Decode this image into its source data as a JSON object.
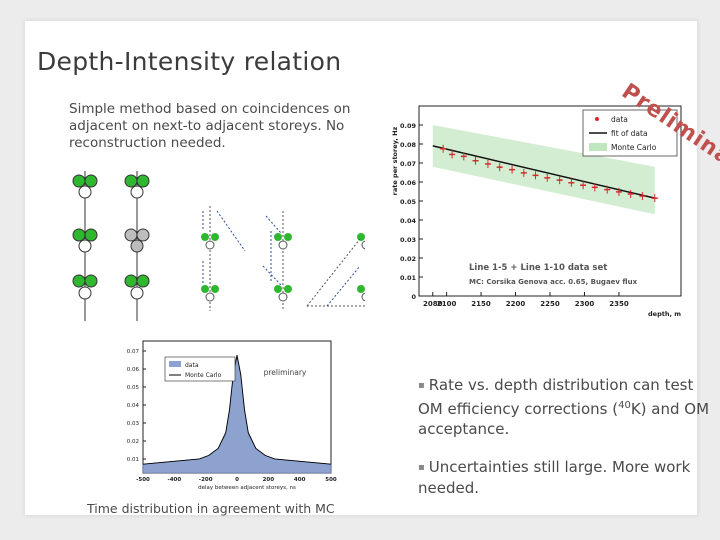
{
  "slide": {
    "title": "Depth-Intensity relation",
    "intro": "Simple method based on coincidences on adjacent on next-to adjacent storeys. No reconstruction needed.",
    "watermark": "Preliminary",
    "bullets": [
      {
        "pre": "Rate vs. depth distribution can test OM efficiency corrections (",
        "sup": "40",
        "post": "K) and  OM acceptance."
      },
      {
        "pre": "Uncertainties still large. More work needed.",
        "sup": "",
        "post": ""
      }
    ],
    "caption": "Time distribution in agreement with MC"
  },
  "chart_data": [
    {
      "type": "scatter",
      "title": "",
      "xlabel": "depth, m",
      "ylabel": "rate per storey, Hz",
      "xlim": [
        2060,
        2440
      ],
      "ylim": [
        0,
        0.1
      ],
      "xticks": [
        "2080",
        "2100",
        "2150",
        "2200",
        "2250",
        "2300",
        "2350"
      ],
      "yticks": [
        "0",
        "0.01",
        "0.02",
        "0.03",
        "0.04",
        "0.05",
        "0.06",
        "0.07",
        "0.08",
        "0.09"
      ],
      "legend": {
        "position": "top-right",
        "entries": [
          "data",
          "fit of data",
          "Monte Carlo"
        ]
      },
      "annotation_lines": [
        "Line 1-5 + Line 1-10 data set",
        "MC: Corsika Genova acc. 0.65, Bugaev flux"
      ],
      "series": [
        {
          "name": "data",
          "x": [
            2095,
            2108,
            2125,
            2142,
            2160,
            2177,
            2195,
            2212,
            2229,
            2246,
            2264,
            2281,
            2298,
            2315,
            2333,
            2350,
            2367,
            2384,
            2402
          ],
          "y": [
            0.0775,
            0.0745,
            0.0735,
            0.0712,
            0.0695,
            0.0678,
            0.0665,
            0.0648,
            0.0635,
            0.0622,
            0.061,
            0.0596,
            0.0583,
            0.0572,
            0.056,
            0.0548,
            0.0537,
            0.0526,
            0.0515
          ]
        },
        {
          "name": "fit of data",
          "x": [
            2080,
            2402
          ],
          "y": [
            0.079,
            0.0515
          ]
        },
        {
          "name": "Monte Carlo",
          "x": [
            2080,
            2402
          ],
          "y_low": [
            0.068,
            0.043
          ],
          "y_high": [
            0.09,
            0.068
          ]
        }
      ]
    },
    {
      "type": "bar",
      "title": "",
      "annotation": "preliminary",
      "xlabel": "delay between adjacent storeys, ns",
      "ylabel": "",
      "xticks": [
        "-500",
        "-400",
        "-200",
        "0",
        "200",
        "400",
        "500"
      ],
      "yticks": [
        "0.07",
        "0.06",
        "0.05",
        "0.04",
        "0.03",
        "0.02",
        "0.01"
      ],
      "legend": {
        "position": "top-right",
        "entries": [
          "data",
          "Monte Carlo"
        ]
      },
      "series": [
        {
          "name": "data",
          "x": [
            -500,
            -400,
            -300,
            -200,
            -150,
            -100,
            -60,
            -40,
            -20,
            0,
            20,
            40,
            60,
            100,
            150,
            200,
            300,
            400,
            500
          ],
          "y": [
            0.005,
            0.006,
            0.007,
            0.008,
            0.01,
            0.014,
            0.022,
            0.035,
            0.055,
            0.066,
            0.055,
            0.035,
            0.022,
            0.014,
            0.01,
            0.008,
            0.007,
            0.006,
            0.005
          ]
        },
        {
          "name": "Monte Carlo",
          "x": [
            -500,
            -400,
            -300,
            -200,
            -150,
            -100,
            -60,
            -40,
            -20,
            0,
            20,
            40,
            60,
            100,
            150,
            200,
            300,
            400,
            500
          ],
          "y": [
            0.005,
            0.006,
            0.007,
            0.008,
            0.01,
            0.014,
            0.023,
            0.036,
            0.056,
            0.067,
            0.056,
            0.036,
            0.023,
            0.014,
            0.01,
            0.008,
            0.007,
            0.006,
            0.005
          ]
        }
      ],
      "colors": {
        "data": "#8ea2cf",
        "monte_carlo": "#000000"
      }
    }
  ],
  "colors": {
    "title": "#3b3b3b",
    "watermark": "#c0504d",
    "green_om": "#2fb82f",
    "mc_band": "#bfe6bf",
    "data_point": "#d42a2a"
  }
}
